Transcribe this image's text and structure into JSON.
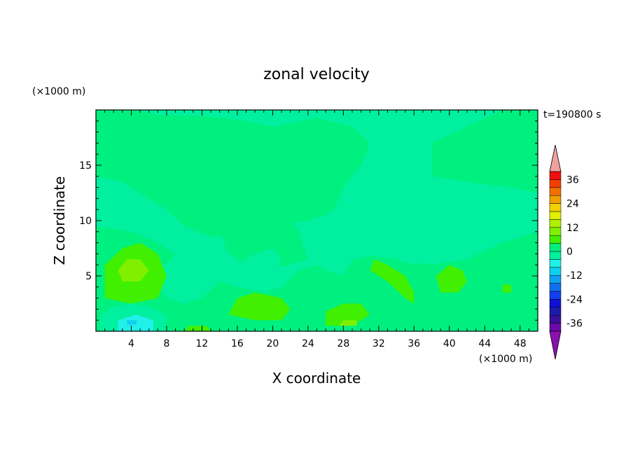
{
  "chart_data": {
    "type": "heatmap",
    "title": "zonal velocity",
    "xlabel": "X coordinate",
    "ylabel": "Z coordinate",
    "x_unit": "(×1000 m)",
    "y_unit": "(×1000 m)",
    "time_label": "t=190800 s",
    "xlim": [
      0,
      50
    ],
    "ylim": [
      0,
      20
    ],
    "x_ticks": [
      4,
      8,
      12,
      16,
      20,
      24,
      28,
      32,
      36,
      40,
      44,
      48
    ],
    "y_ticks": [
      5,
      10,
      15
    ],
    "colorbar": {
      "levels": [
        -40,
        -36,
        -32,
        -28,
        -24,
        -20,
        -16,
        -12,
        -8,
        -4,
        0,
        4,
        8,
        12,
        16,
        20,
        24,
        28,
        32,
        36,
        40
      ],
      "tick_labels": [
        "36",
        "24",
        "12",
        "0",
        "-12",
        "-24",
        "-36"
      ],
      "tick_values": [
        36,
        24,
        12,
        0,
        -12,
        -24,
        -36
      ],
      "colors": [
        "#6a0aa8",
        "#3a1098",
        "#1c1ca8",
        "#1010d8",
        "#1040f0",
        "#1070f0",
        "#10a0f0",
        "#10d0f0",
        "#20f0e8",
        "#00f0a0",
        "#00f080",
        "#40f000",
        "#80f000",
        "#b0f000",
        "#e0f000",
        "#f0d000",
        "#f0a000",
        "#f07000",
        "#f04000",
        "#f01010"
      ],
      "under_color": "#8a10b0",
      "over_color": "#f0a0a0"
    },
    "regions": [
      {
        "level": 0,
        "points": [
          [
            0,
            14
          ],
          [
            3,
            13.5
          ],
          [
            6,
            12
          ],
          [
            8,
            11
          ],
          [
            10,
            9.5
          ],
          [
            13,
            8.5
          ],
          [
            17,
            9
          ],
          [
            20,
            9.5
          ],
          [
            24,
            10
          ],
          [
            26,
            10.5
          ],
          [
            27,
            11
          ],
          [
            28,
            13
          ],
          [
            30,
            15
          ],
          [
            31,
            17
          ],
          [
            29,
            18.5
          ],
          [
            25,
            19.3
          ],
          [
            20,
            18.5
          ],
          [
            17,
            19
          ],
          [
            12,
            19.5
          ],
          [
            8,
            19.5
          ],
          [
            4,
            20
          ],
          [
            0,
            20
          ]
        ]
      },
      {
        "level": 0,
        "points": [
          [
            38,
            14
          ],
          [
            42,
            13.5
          ],
          [
            47,
            13
          ],
          [
            50,
            12.5
          ],
          [
            50,
            20
          ],
          [
            46,
            20
          ],
          [
            42,
            18.5
          ],
          [
            38,
            17
          ]
        ]
      },
      {
        "level": 0,
        "points": [
          [
            0,
            0
          ],
          [
            50,
            0
          ],
          [
            50,
            9
          ],
          [
            46,
            8
          ],
          [
            42,
            6.5
          ],
          [
            38,
            6
          ],
          [
            35,
            6.5
          ],
          [
            31,
            6.8
          ],
          [
            29,
            6.5
          ],
          [
            28,
            5
          ],
          [
            26,
            5.5
          ],
          [
            25,
            6
          ],
          [
            23,
            5.5
          ],
          [
            21,
            4
          ],
          [
            19,
            3.5
          ],
          [
            16,
            4
          ],
          [
            14,
            4.5
          ],
          [
            12,
            3
          ],
          [
            10,
            2.5
          ],
          [
            8,
            3
          ],
          [
            6,
            6
          ],
          [
            4,
            8
          ],
          [
            2,
            8.5
          ],
          [
            0,
            8
          ]
        ]
      },
      {
        "level": 0,
        "points": [
          [
            22,
            6
          ],
          [
            24,
            6.5
          ],
          [
            23,
            9
          ],
          [
            21,
            11
          ],
          [
            18,
            12
          ],
          [
            16,
            11
          ],
          [
            14,
            9
          ],
          [
            15,
            7
          ],
          [
            18,
            5.5
          ]
        ]
      },
      {
        "level": 0,
        "points": [
          [
            0,
            9.5
          ],
          [
            4,
            9
          ],
          [
            7,
            8
          ],
          [
            9,
            7
          ],
          [
            8,
            6
          ],
          [
            5,
            6.5
          ],
          [
            2,
            7
          ],
          [
            0,
            7.5
          ]
        ]
      },
      {
        "level": -4,
        "points": [
          [
            16,
            4
          ],
          [
            18,
            4
          ],
          [
            20,
            5
          ],
          [
            21,
            6.5
          ],
          [
            20,
            7.5
          ],
          [
            18,
            7
          ],
          [
            16,
            6
          ]
        ]
      },
      {
        "level": -4,
        "points": [
          [
            34,
            7.5
          ],
          [
            36,
            8
          ],
          [
            38,
            7.5
          ],
          [
            38,
            6.5
          ],
          [
            36,
            6
          ],
          [
            34,
            6.5
          ]
        ]
      },
      {
        "level": -4,
        "points": [
          [
            5,
            0
          ],
          [
            8,
            0
          ],
          [
            8,
            1.5
          ],
          [
            6,
            2.2
          ],
          [
            4,
            2.5
          ],
          [
            2,
            2.2
          ],
          [
            0.5,
            1.5
          ],
          [
            0.5,
            0
          ]
        ]
      },
      {
        "level": -8,
        "points": [
          [
            2.5,
            0
          ],
          [
            6.5,
            0
          ],
          [
            6.5,
            1
          ],
          [
            4.5,
            1.5
          ],
          [
            2.5,
            1
          ]
        ]
      },
      {
        "level": -12,
        "points": [
          [
            3.5,
            0.6
          ],
          [
            4.6,
            0.6
          ],
          [
            4.6,
            1
          ],
          [
            3.5,
            1
          ]
        ]
      },
      {
        "level": 4,
        "points": [
          [
            1,
            3
          ],
          [
            4,
            2.5
          ],
          [
            7,
            3
          ],
          [
            8,
            5
          ],
          [
            7,
            7
          ],
          [
            5,
            8
          ],
          [
            3,
            7.5
          ],
          [
            1,
            6
          ]
        ]
      },
      {
        "level": 8,
        "points": [
          [
            3,
            4.5
          ],
          [
            5,
            4.5
          ],
          [
            6,
            5.5
          ],
          [
            5,
            6.5
          ],
          [
            3.5,
            6.5
          ],
          [
            2.5,
            5.5
          ]
        ]
      },
      {
        "level": 4,
        "points": [
          [
            15,
            1.5
          ],
          [
            18,
            1
          ],
          [
            21,
            1
          ],
          [
            22,
            2
          ],
          [
            21,
            3
          ],
          [
            18,
            3.5
          ],
          [
            16,
            3
          ]
        ]
      },
      {
        "level": 4,
        "points": [
          [
            26,
            0.5
          ],
          [
            29,
            0.5
          ],
          [
            31,
            1.5
          ],
          [
            30,
            2.5
          ],
          [
            28,
            2.5
          ],
          [
            26,
            1.8
          ]
        ]
      },
      {
        "level": 8,
        "points": [
          [
            27.5,
            0.5
          ],
          [
            29.5,
            0.5
          ],
          [
            29.5,
            1
          ],
          [
            28,
            1
          ]
        ]
      },
      {
        "level": 4,
        "points": [
          [
            31,
            5.5
          ],
          [
            33,
            4.5
          ],
          [
            35,
            3
          ],
          [
            36,
            2.5
          ],
          [
            36,
            3.5
          ],
          [
            35,
            5
          ],
          [
            33,
            6
          ],
          [
            31.5,
            6.5
          ]
        ]
      },
      {
        "level": 4,
        "points": [
          [
            39,
            3.5
          ],
          [
            41,
            3.5
          ],
          [
            42,
            4.5
          ],
          [
            41.5,
            5.5
          ],
          [
            40,
            6
          ],
          [
            38.5,
            5
          ]
        ]
      },
      {
        "level": 4,
        "points": [
          [
            10,
            0
          ],
          [
            13,
            0
          ],
          [
            12.5,
            0.5
          ],
          [
            10.5,
            0.5
          ]
        ]
      },
      {
        "level": 4,
        "points": [
          [
            46,
            3.5
          ],
          [
            47,
            3.5
          ],
          [
            47,
            4.2
          ],
          [
            46,
            4.2
          ]
        ]
      }
    ]
  }
}
